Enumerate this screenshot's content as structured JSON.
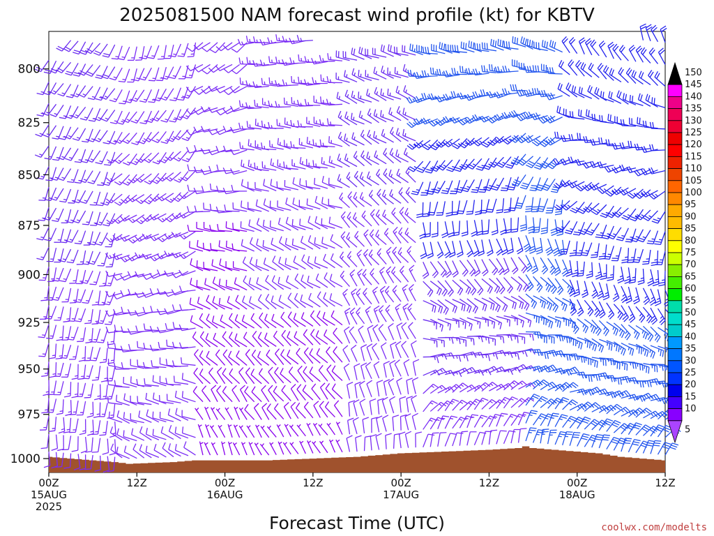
{
  "chart_data": {
    "type": "wind_barbs",
    "title": "2025081500 NAM forecast wind profile (kt) for KBTV",
    "xlabel": "Forecast Time (UTC)",
    "ylabel": "",
    "credit": "coolwx.com/modelts",
    "y_axis": {
      "ticks": [
        800,
        825,
        850,
        875,
        900,
        925,
        950,
        975,
        1000
      ],
      "range_hpa": [
        1008,
        783
      ],
      "levels_hpa_step": 10
    },
    "x_axis": {
      "range_hours": [
        0,
        84
      ],
      "ticks": [
        {
          "hour": 0,
          "line1": "00Z",
          "line2": "15AUG",
          "line3": "2025"
        },
        {
          "hour": 12,
          "line1": "12Z",
          "line2": "",
          "line3": ""
        },
        {
          "hour": 24,
          "line1": "00Z",
          "line2": "16AUG",
          "line3": ""
        },
        {
          "hour": 36,
          "line1": "12Z",
          "line2": "",
          "line3": ""
        },
        {
          "hour": 48,
          "line1": "00Z",
          "line2": "17AUG",
          "line3": ""
        },
        {
          "hour": 60,
          "line1": "12Z",
          "line2": "",
          "line3": ""
        },
        {
          "hour": 72,
          "line1": "00Z",
          "line2": "18AUG",
          "line3": ""
        },
        {
          "hour": 84,
          "line1": "12Z",
          "line2": "",
          "line3": ""
        }
      ],
      "barb_interval_hours": 1
    },
    "colorbar": {
      "labels": [
        "150",
        "145",
        "140",
        "135",
        "130",
        "125",
        "120",
        "115",
        "110",
        "105",
        "100",
        "95",
        "90",
        "85",
        "80",
        "75",
        "70",
        "65",
        "60",
        "55",
        "50",
        "45",
        "40",
        "35",
        "30",
        "25",
        "20",
        "15",
        "10",
        "5"
      ],
      "colors": [
        "#000000",
        "#ff00ff",
        "#ee0088",
        "#ee0055",
        "#ee0033",
        "#ee0000",
        "#ff0000",
        "#ee2200",
        "#ee4400",
        "#ff6600",
        "#ff8800",
        "#ffaa00",
        "#ffbb00",
        "#ffdd00",
        "#ffff00",
        "#ccff00",
        "#88ee00",
        "#44ee00",
        "#00ee00",
        "#00ddaa",
        "#00ddcc",
        "#00cccc",
        "#0099ff",
        "#0077ff",
        "#0055ff",
        "#0033ff",
        "#0000ee",
        "#4400ff",
        "#8800ff",
        "#aa44ff"
      ]
    },
    "terrain": {
      "color": "#a0522d",
      "surface_pressure_hpa": [
        {
          "hour": 0,
          "p": 999
        },
        {
          "hour": 3,
          "p": 1000
        },
        {
          "hour": 6,
          "p": 1001
        },
        {
          "hour": 9,
          "p": 1002
        },
        {
          "hour": 11,
          "p": 1003
        },
        {
          "hour": 17,
          "p": 1002
        },
        {
          "hour": 20,
          "p": 1001
        },
        {
          "hour": 30,
          "p": 1001
        },
        {
          "hour": 36,
          "p": 1000
        },
        {
          "hour": 42,
          "p": 999
        },
        {
          "hour": 48,
          "p": 997
        },
        {
          "hour": 54,
          "p": 996
        },
        {
          "hour": 60,
          "p": 995
        },
        {
          "hour": 64,
          "p": 994
        },
        {
          "hour": 65,
          "p": 993
        },
        {
          "hour": 66,
          "p": 994
        },
        {
          "hour": 69,
          "p": 995
        },
        {
          "hour": 72,
          "p": 996
        },
        {
          "hour": 75,
          "p": 997
        },
        {
          "hour": 78,
          "p": 999
        },
        {
          "hour": 81,
          "p": 1000
        },
        {
          "hour": 84,
          "p": 1001
        }
      ]
    },
    "wind_regimes": [
      {
        "hours": [
          0,
          9
        ],
        "dir_low_deg": 180,
        "dir_high_deg": 215,
        "spd_low_kt": 12,
        "spd_high_kt": 18
      },
      {
        "hours": [
          10,
          20
        ],
        "dir_low_deg": 300,
        "dir_high_deg": 195,
        "spd_low_kt": 10,
        "spd_high_kt": 15
      },
      {
        "hours": [
          21,
          27
        ],
        "dir_low_deg": 340,
        "dir_high_deg": 230,
        "spd_low_kt": 7,
        "spd_high_kt": 12
      },
      {
        "hours": [
          28,
          40
        ],
        "dir_low_deg": 330,
        "dir_high_deg": 265,
        "spd_low_kt": 7,
        "spd_high_kt": 15
      },
      {
        "hours": [
          41,
          50
        ],
        "dir_low_deg": 355,
        "dir_high_deg": 285,
        "spd_low_kt": 10,
        "spd_high_kt": 18
      },
      {
        "hours": [
          51,
          64
        ],
        "dir_low_deg": 15,
        "dir_high_deg": 290,
        "spd_low_kt": 12,
        "spd_high_kt": 28
      },
      {
        "hours": [
          65,
          70
        ],
        "dir_low_deg": 15,
        "dir_high_deg": 295,
        "spd_low_kt": 25,
        "spd_high_kt": 30
      },
      {
        "hours": [
          71,
          84
        ],
        "dir_low_deg": 25,
        "dir_high_deg": 340,
        "spd_low_kt": 28,
        "spd_high_kt": 20
      }
    ]
  }
}
